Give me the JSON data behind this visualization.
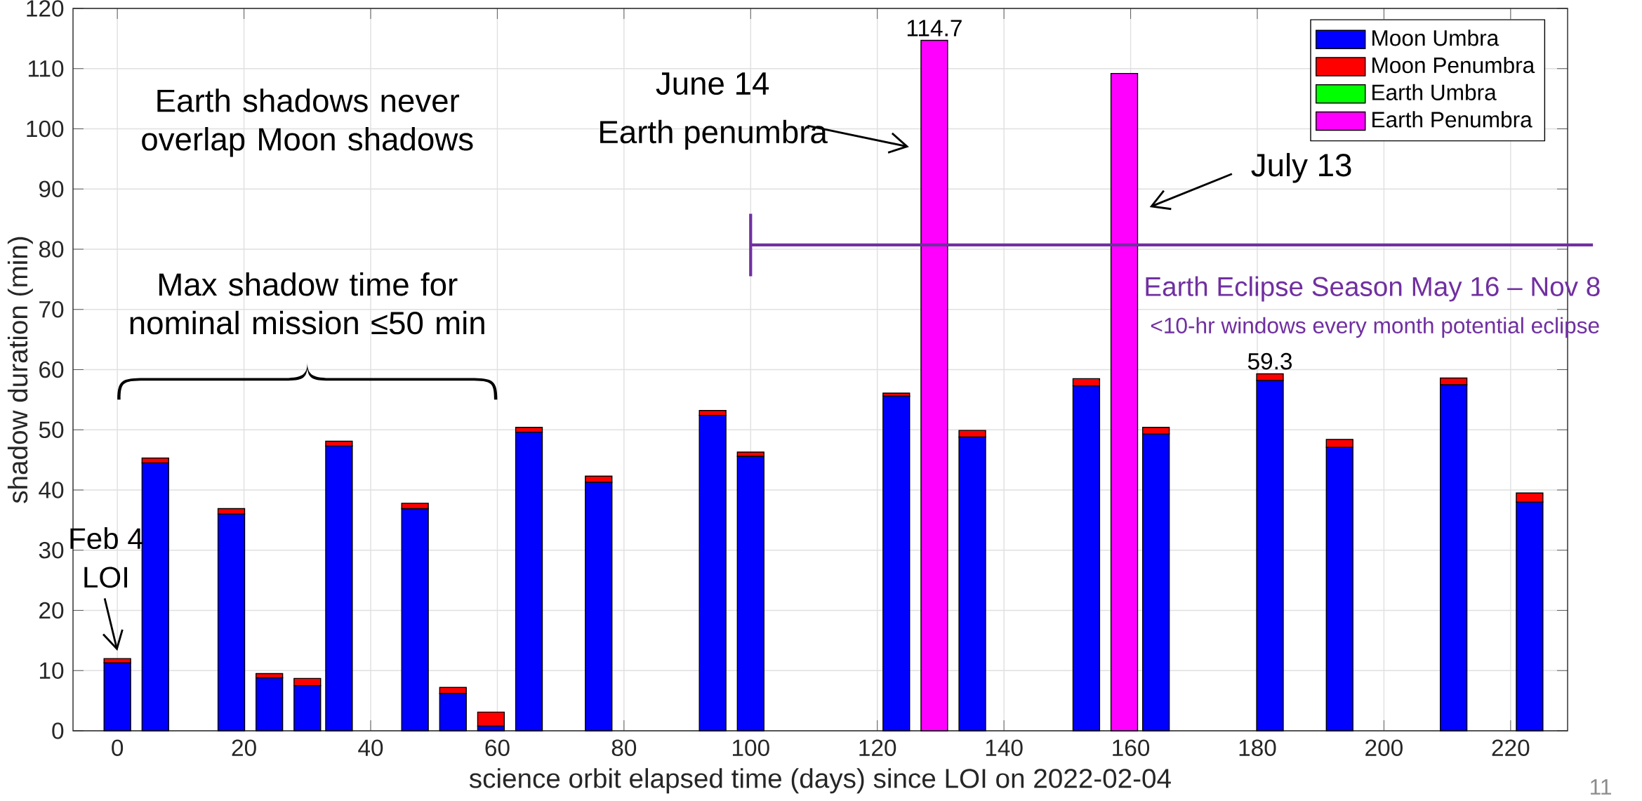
{
  "chart_data": {
    "type": "bar",
    "stacked": true,
    "xlabel": "science orbit elapsed time (days) since LOI on 2022-02-04",
    "ylabel": "shadow duration (min)",
    "x": [
      0,
      6,
      18,
      24,
      30,
      35,
      47,
      53,
      59,
      65,
      76,
      94,
      100,
      123,
      129,
      135,
      153,
      159,
      164,
      182,
      193,
      211,
      223
    ],
    "series": [
      {
        "name": "Moon Umbra",
        "color": "#0000ff",
        "values": [
          11.3,
          44.5,
          36.0,
          8.8,
          7.5,
          47.3,
          36.9,
          6.2,
          0.8,
          49.6,
          41.3,
          52.4,
          45.6,
          55.6,
          null,
          48.8,
          57.3,
          null,
          49.3,
          58.2,
          47.1,
          57.5,
          38.0
        ]
      },
      {
        "name": "Moon Penumbra",
        "color": "#ff0000",
        "values": [
          0.7,
          0.8,
          0.9,
          0.7,
          1.2,
          0.8,
          0.9,
          1.0,
          2.3,
          0.8,
          1.0,
          0.8,
          0.7,
          0.5,
          null,
          1.1,
          1.2,
          null,
          1.1,
          1.1,
          1.3,
          1.1,
          1.5
        ]
      },
      {
        "name": "Earth Umbra",
        "color": "#00ff00",
        "values": [
          null,
          null,
          null,
          null,
          null,
          null,
          null,
          null,
          null,
          null,
          null,
          null,
          null,
          null,
          null,
          null,
          null,
          null,
          null,
          null,
          null,
          null,
          null
        ]
      },
      {
        "name": "Earth Penumbra",
        "color": "#ff00ff",
        "values": [
          null,
          null,
          null,
          null,
          null,
          null,
          null,
          null,
          null,
          null,
          null,
          null,
          null,
          null,
          114.7,
          null,
          null,
          109.2,
          null,
          null,
          null,
          null,
          null
        ]
      }
    ],
    "xlim": [
      -7,
      229
    ],
    "ylim": [
      0,
      120
    ],
    "xticks": [
      0,
      20,
      40,
      60,
      80,
      100,
      120,
      140,
      160,
      180,
      200,
      220
    ],
    "yticks": [
      0,
      10,
      20,
      30,
      40,
      50,
      60,
      70,
      80,
      90,
      100,
      110,
      120
    ],
    "grid": true,
    "legend": "top right",
    "annotations": [
      "Earth shadows never overlap Moon shadows",
      "Max shadow time for nominal mission ≤50 min",
      "June 14",
      "Earth penumbra",
      "July 13",
      "Feb 4",
      {
        "text": "LOI",
        "x": 0,
        "y": 12
      },
      "Earth Eclipse Season May 16 – Nov 8",
      "<10-hr windows every month potential eclipse",
      {
        "text": "114.7",
        "x": 129,
        "y": 114.7
      },
      {
        "text": "59.3",
        "x": 182,
        "y": 59.3
      },
      "11"
    ]
  }
}
